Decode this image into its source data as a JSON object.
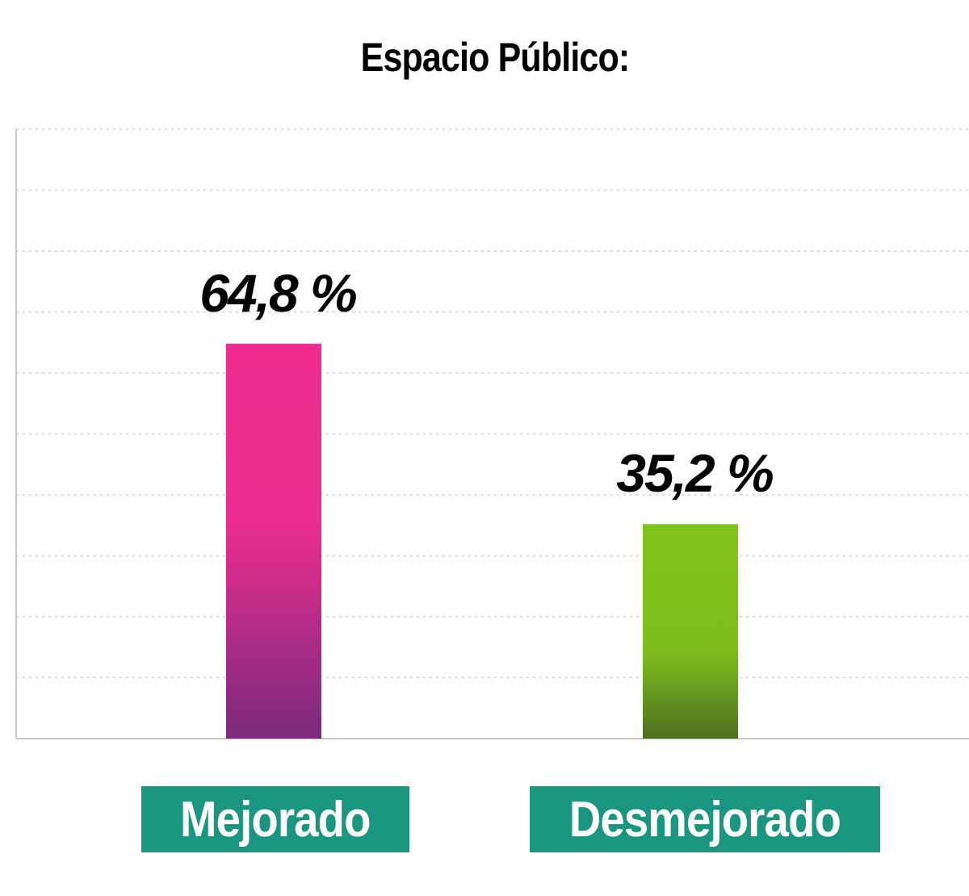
{
  "chart_data": {
    "type": "bar",
    "title": "Espacio Público:",
    "categories": [
      "Mejorado",
      "Desmejorado"
    ],
    "values": [
      64.8,
      35.2
    ],
    "value_labels": [
      "64,8 %",
      "35,2 %"
    ],
    "ylim": [
      0,
      100
    ],
    "grid": true,
    "legend": "none",
    "colors": {
      "Mejorado": {
        "top": "#ee2d8f",
        "bottom": "#7a2a7e"
      },
      "Desmejorado": {
        "top": "#80c41c",
        "bottom": "#4d7020"
      },
      "label_background": "#1a9680",
      "label_text": "#ffffff",
      "grid_line": "#d8d8d8",
      "axis_line": "#c8c8c8"
    }
  }
}
